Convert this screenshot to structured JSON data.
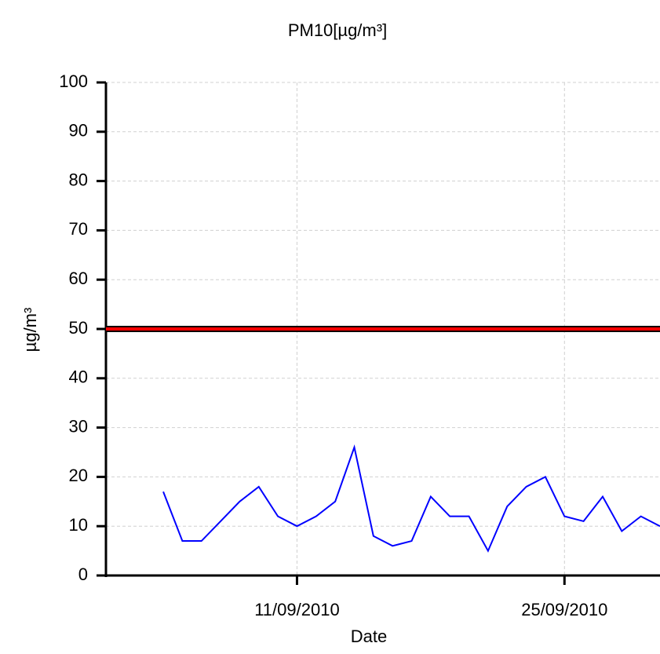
{
  "chart_data": {
    "type": "line",
    "title": "PM10[µg/m³]",
    "x_label": "Date",
    "y_label": "µg/m³",
    "x": [
      "2010-09-04",
      "2010-09-05",
      "2010-09-06",
      "2010-09-07",
      "2010-09-08",
      "2010-09-09",
      "2010-09-10",
      "2010-09-11",
      "2010-09-12",
      "2010-09-13",
      "2010-09-14",
      "2010-09-15",
      "2010-09-16",
      "2010-09-17",
      "2010-09-18",
      "2010-09-19",
      "2010-09-20",
      "2010-09-21",
      "2010-09-22",
      "2010-09-23",
      "2010-09-24",
      "2010-09-25",
      "2010-09-26",
      "2010-09-27",
      "2010-09-28",
      "2010-09-29",
      "2010-09-30"
    ],
    "series": [
      {
        "name": "PM10",
        "color": "#0000ff",
        "values": [
          17,
          7,
          7,
          11,
          15,
          18,
          12,
          10,
          12,
          15,
          26,
          8,
          6,
          7,
          16,
          12,
          12,
          5,
          14,
          18,
          20,
          12,
          11,
          16,
          9,
          12,
          10
        ]
      }
    ],
    "threshold": {
      "value": 50,
      "color": "#ff0000"
    },
    "xlim": [
      "2010-09-01",
      "2010-09-30"
    ],
    "xticks": [
      {
        "value": "2010-09-11",
        "label": "11/09/2010"
      },
      {
        "value": "2010-09-25",
        "label": "25/09/2010"
      }
    ],
    "ylim": [
      0,
      100
    ],
    "yticks": [
      0,
      10,
      20,
      30,
      40,
      50,
      60,
      70,
      80,
      90,
      100
    ],
    "grid": true
  }
}
